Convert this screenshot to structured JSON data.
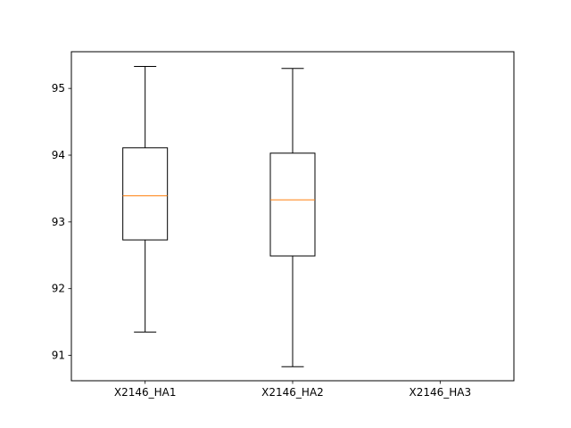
{
  "chart_data": {
    "type": "box",
    "title": "",
    "xlabel": "",
    "ylabel": "",
    "ylim": [
      90.62,
      95.55
    ],
    "yticks": [
      91,
      92,
      93,
      94,
      95
    ],
    "grid": false,
    "categories": [
      "X2146_HA1",
      "X2146_HA2",
      "X2146_HA3"
    ],
    "boxes": [
      {
        "category": "X2146_HA1",
        "whisker_low": 91.35,
        "q1": 92.73,
        "median": 93.39,
        "q3": 94.11,
        "whisker_high": 95.33
      },
      {
        "category": "X2146_HA2",
        "whisker_low": 90.83,
        "q1": 92.49,
        "median": 93.33,
        "q3": 94.03,
        "whisker_high": 95.3
      },
      {
        "category": "X2146_HA3",
        "whisker_low": null,
        "q1": null,
        "median": null,
        "q3": null,
        "whisker_high": null
      }
    ],
    "colors": {
      "box": "#000000",
      "median": "#ff7f0e",
      "axes": "#000000"
    }
  }
}
